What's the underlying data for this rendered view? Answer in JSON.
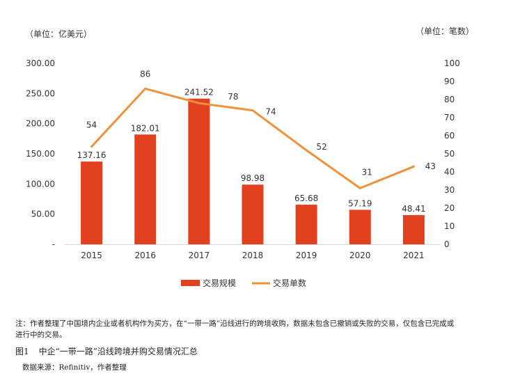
{
  "units": {
    "left": "（单位：亿美元）",
    "right": "（单位：笔数）"
  },
  "colors": {
    "bar": "#e2411f",
    "line": "#f0913a",
    "axis": "#d9d9d9",
    "text": "#333333"
  },
  "chart_data": {
    "type": "bar+line",
    "categories": [
      "2015",
      "2016",
      "2017",
      "2018",
      "2019",
      "2020",
      "2021"
    ],
    "series": [
      {
        "name": "交易规模",
        "type": "bar",
        "axis": "left",
        "values": [
          137.16,
          182.01,
          241.52,
          98.98,
          65.68,
          57.19,
          48.41
        ],
        "labels": [
          "137.16",
          "182.01",
          "241.52",
          "98.98",
          "65.68",
          "57.19",
          "48.41"
        ]
      },
      {
        "name": "交易单数",
        "type": "line",
        "axis": "right",
        "values": [
          54,
          86,
          78,
          74,
          52,
          31,
          43
        ],
        "labels": [
          "54",
          "86",
          "78",
          "74",
          "52",
          "31",
          "43"
        ]
      }
    ],
    "y_left": {
      "min": 0,
      "max": 300,
      "ticks": [
        0,
        50,
        100,
        150,
        200,
        250,
        300
      ],
      "tick_labels": [
        "-",
        "50.00",
        "100.00",
        "150.00",
        "200.00",
        "250.00",
        "300.00"
      ]
    },
    "y_right": {
      "min": 0,
      "max": 100,
      "ticks": [
        0,
        10,
        20,
        30,
        40,
        50,
        60,
        70,
        80,
        90,
        100
      ],
      "tick_labels": [
        "0",
        "10",
        "20",
        "30",
        "40",
        "50",
        "60",
        "70",
        "80",
        "90",
        "100"
      ]
    },
    "legend_position": "bottom",
    "grid": false
  },
  "footer": {
    "note": "注：作者整理了中国境内企业或者机构作为买方，在“一带一路”沿线进行的跨境收购，数据未包含已撤销或失败的交易，仅包含已完成或进行中的交易。",
    "figure_no": "图1",
    "figure_title": "中企“一带一路”沿线跨境并购交易情况汇总",
    "source": "数据来源：Refinitiv，作者整理"
  }
}
